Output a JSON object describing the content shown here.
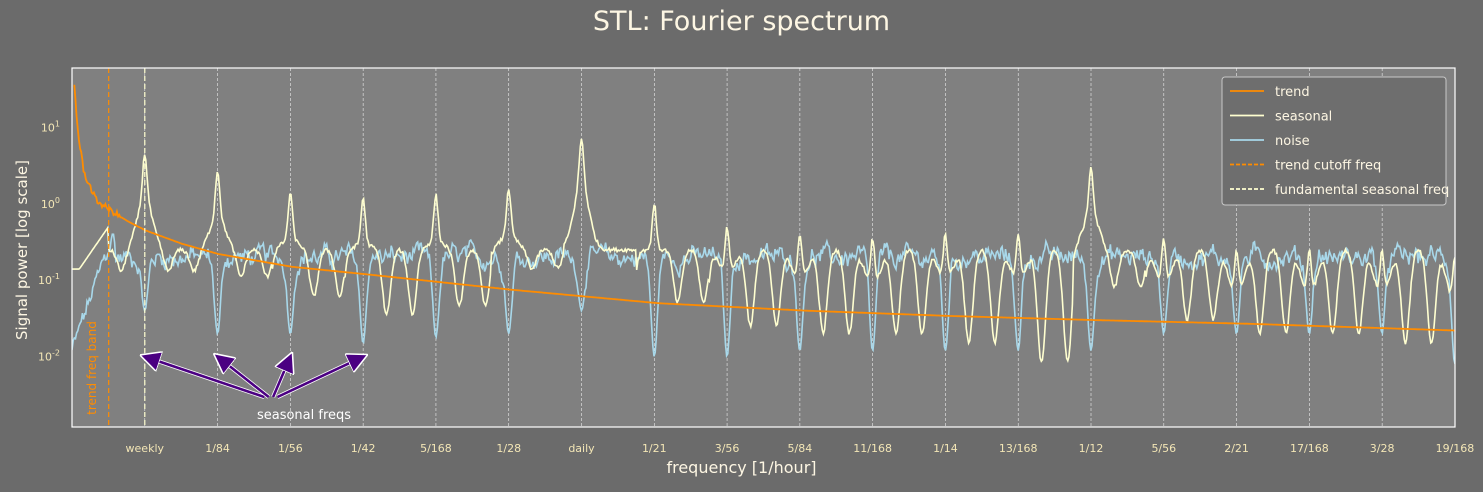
{
  "chart_data": {
    "type": "line",
    "title": "STL: Fourier spectrum",
    "xlabel": "frequency [1/hour]",
    "ylabel": "Signal power [log scale]",
    "y_scale": "log",
    "ylim": [
      0.0012,
      60
    ],
    "xlim": [
      0.0,
      0.1131
    ],
    "x_tick_values": [
      0.005952,
      0.011905,
      0.017857,
      0.02381,
      0.029762,
      0.035714,
      0.041667,
      0.047619,
      0.053571,
      0.059524,
      0.065476,
      0.071429,
      0.077381,
      0.083333,
      0.089286,
      0.095238,
      0.10119,
      0.107143,
      0.113095
    ],
    "x_tick_labels": [
      "weekly",
      "1/84",
      "1/56",
      "1/42",
      "5/168",
      "1/28",
      "daily",
      "1/21",
      "3/56",
      "5/84",
      "11/168",
      "1/14",
      "13/168",
      "1/12",
      "5/56",
      "2/21",
      "17/168",
      "3/28",
      "19/168"
    ],
    "y_ticks": [
      {
        "base": "10",
        "exp": "-2",
        "value": 0.01
      },
      {
        "base": "10",
        "exp": "-1",
        "value": 0.1
      },
      {
        "base": "10",
        "exp": "0",
        "value": 1
      },
      {
        "base": "10",
        "exp": "1",
        "value": 10
      }
    ],
    "grid": "vertical dashed at x ticks",
    "legend_position": "top-right",
    "series": [
      {
        "name": "trend",
        "color": "#ff8c00",
        "model": "power-law decay",
        "x": [
          0.0002,
          0.0005,
          0.001,
          0.002,
          0.003,
          0.0045,
          0.006,
          0.009,
          0.012,
          0.018,
          0.024,
          0.036,
          0.048,
          0.06,
          0.072,
          0.084,
          0.096,
          0.1131
        ],
        "values": [
          35,
          8,
          2.5,
          1.1,
          0.85,
          0.6,
          0.45,
          0.3,
          0.22,
          0.15,
          0.12,
          0.075,
          0.05,
          0.04,
          0.034,
          0.03,
          0.027,
          0.022
        ]
      },
      {
        "name": "seasonal",
        "color": "#ffffd0",
        "model": "peaks at multiples of 1/168",
        "peak_x": [
          0.005952,
          0.011905,
          0.017857,
          0.02381,
          0.029762,
          0.035714,
          0.041667,
          0.047619,
          0.053571,
          0.059524,
          0.065476,
          0.071429,
          0.077381,
          0.083333,
          0.089286,
          0.095238,
          0.10119,
          0.107143,
          0.113095
        ],
        "peak_values": [
          4.5,
          2.7,
          1.4,
          1.2,
          1.3,
          1.6,
          7.0,
          1.0,
          0.5,
          0.4,
          0.35,
          0.4,
          0.4,
          3.0,
          0.35,
          0.25,
          0.25,
          0.25,
          0.2
        ],
        "trough_values": [
          0.13,
          0.11,
          0.06,
          0.035,
          0.045,
          0.14,
          0.25,
          0.05,
          0.025,
          0.02,
          0.02,
          0.015,
          0.008,
          0.08,
          0.03,
          0.02,
          0.02,
          0.015,
          0.02
        ]
      },
      {
        "name": "noise",
        "color": "#a8d8ea",
        "model": "troughs at multiples of 1/168",
        "base_level": 0.2,
        "trough_x": [
          0.005952,
          0.011905,
          0.017857,
          0.02381,
          0.029762,
          0.035714,
          0.041667,
          0.047619,
          0.053571,
          0.059524,
          0.065476,
          0.071429,
          0.077381,
          0.083333,
          0.089286,
          0.095238,
          0.10119,
          0.107143,
          0.113095
        ],
        "trough_values": [
          0.04,
          0.02,
          0.02,
          0.015,
          0.018,
          0.02,
          0.04,
          0.01,
          0.01,
          0.012,
          0.012,
          0.012,
          0.012,
          0.012,
          0.02,
          0.02,
          0.02,
          0.02,
          0.008
        ]
      },
      {
        "name": "trend cutoff freq",
        "color": "#ff8c00",
        "style": "dashed",
        "x": 0.003
      },
      {
        "name": "fundamental seasonal freq",
        "color": "#ffffd0",
        "style": "dashed",
        "x": 0.005952
      }
    ],
    "annotations": [
      {
        "text": "trend freq band",
        "color": "#ff8c00"
      },
      {
        "text": "seasonal freqs",
        "color": "#ffffff",
        "arrow_color": "#4b0082",
        "arrow_targets": [
          [
            0.005952,
            0.01
          ],
          [
            0.011905,
            0.01
          ],
          [
            0.017857,
            0.01
          ],
          [
            0.02381,
            0.01
          ]
        ]
      }
    ]
  }
}
